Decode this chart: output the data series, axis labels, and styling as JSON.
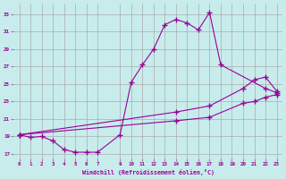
{
  "xlabel": "Windchill (Refroidissement éolien,°C)",
  "background_color": "#c8ecec",
  "line_color": "#990099",
  "grid_color": "#aaaaaa",
  "xlim": [
    -0.5,
    23.5
  ],
  "ylim": [
    16.5,
    34.2
  ],
  "xticks": [
    0,
    1,
    2,
    3,
    4,
    5,
    6,
    7,
    9,
    10,
    11,
    12,
    13,
    14,
    15,
    16,
    17,
    18,
    19,
    20,
    21,
    22,
    23
  ],
  "yticks": [
    17,
    19,
    21,
    23,
    25,
    27,
    29,
    31,
    33
  ],
  "curve1_x": [
    0,
    1,
    2,
    3,
    4,
    5,
    6,
    7,
    9,
    10,
    11,
    12,
    13,
    14,
    15,
    16,
    17,
    18,
    22,
    23
  ],
  "curve1_y": [
    19.2,
    18.9,
    19.0,
    18.5,
    17.5,
    17.2,
    17.2,
    17.2,
    19.2,
    25.2,
    27.2,
    29.0,
    31.8,
    32.4,
    32.0,
    31.2,
    33.2,
    27.2,
    24.5,
    24.0
  ],
  "curve2_x": [
    0,
    14,
    17,
    20,
    21,
    22,
    23
  ],
  "curve2_y": [
    19.2,
    21.8,
    22.5,
    24.5,
    25.5,
    25.8,
    24.2
  ],
  "curve3_x": [
    0,
    14,
    17,
    20,
    21,
    22,
    23
  ],
  "curve3_y": [
    19.2,
    20.8,
    21.2,
    22.8,
    23.0,
    23.5,
    23.8
  ]
}
